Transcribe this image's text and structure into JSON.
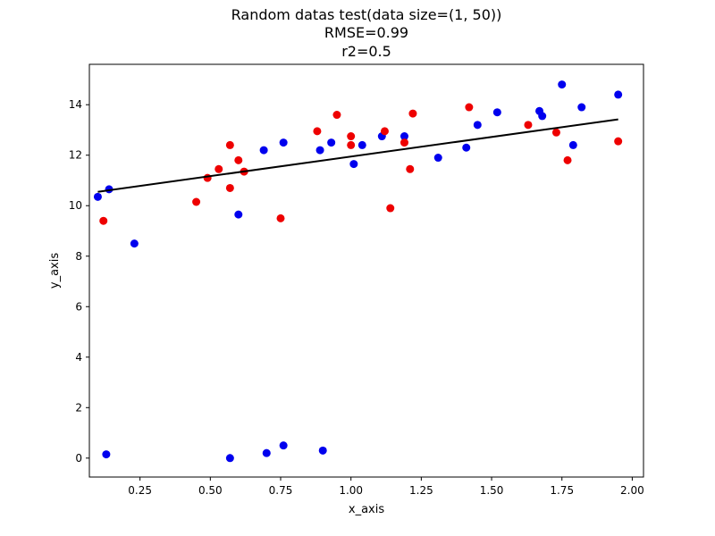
{
  "chart_data": {
    "type": "scatter",
    "title_lines": [
      "Random datas test(data size=(1, 50))",
      "RMSE=0.99",
      "r2=0.5"
    ],
    "xlabel": "x_axis",
    "ylabel": "y_axis",
    "xlim": [
      0.07,
      2.04
    ],
    "ylim": [
      -0.75,
      15.6
    ],
    "x_ticks": [
      0.25,
      0.5,
      0.75,
      1.0,
      1.25,
      1.5,
      1.75,
      2.0
    ],
    "x_tick_labels": [
      "0.25",
      "0.50",
      "0.75",
      "1.00",
      "1.25",
      "1.50",
      "1.75",
      "2.00"
    ],
    "y_ticks": [
      0,
      2,
      4,
      6,
      8,
      10,
      12,
      14
    ],
    "y_tick_labels": [
      "0",
      "2",
      "4",
      "6",
      "8",
      "10",
      "12",
      "14"
    ],
    "grid": false,
    "series": [
      {
        "color": "#0000ee",
        "points": [
          [
            0.1,
            10.35
          ],
          [
            0.14,
            10.65
          ],
          [
            0.23,
            8.5
          ],
          [
            0.13,
            0.15
          ],
          [
            0.6,
            9.65
          ],
          [
            0.69,
            12.2
          ],
          [
            0.76,
            12.5
          ],
          [
            0.89,
            12.2
          ],
          [
            0.93,
            12.5
          ],
          [
            1.01,
            11.65
          ],
          [
            1.04,
            12.4
          ],
          [
            1.11,
            12.75
          ],
          [
            1.19,
            12.75
          ],
          [
            1.31,
            11.9
          ],
          [
            1.41,
            12.3
          ],
          [
            1.45,
            13.2
          ],
          [
            1.52,
            13.7
          ],
          [
            1.67,
            13.75
          ],
          [
            1.68,
            13.55
          ],
          [
            1.75,
            14.8
          ],
          [
            1.79,
            12.4
          ],
          [
            1.82,
            13.9
          ],
          [
            1.95,
            14.4
          ],
          [
            0.57,
            0.0
          ],
          [
            0.7,
            0.2
          ],
          [
            0.76,
            0.5
          ],
          [
            0.9,
            0.3
          ]
        ]
      },
      {
        "color": "#ee0000",
        "points": [
          [
            0.12,
            9.4
          ],
          [
            0.45,
            10.15
          ],
          [
            0.49,
            11.1
          ],
          [
            0.53,
            11.45
          ],
          [
            0.57,
            12.4
          ],
          [
            0.57,
            10.7
          ],
          [
            0.6,
            11.8
          ],
          [
            0.62,
            11.35
          ],
          [
            0.75,
            9.5
          ],
          [
            0.88,
            12.95
          ],
          [
            0.95,
            13.6
          ],
          [
            1.0,
            12.75
          ],
          [
            1.0,
            12.4
          ],
          [
            1.12,
            12.95
          ],
          [
            1.14,
            9.9
          ],
          [
            1.19,
            12.5
          ],
          [
            1.21,
            11.45
          ],
          [
            1.22,
            13.65
          ],
          [
            1.42,
            13.9
          ],
          [
            1.63,
            13.2
          ],
          [
            1.73,
            12.9
          ],
          [
            1.77,
            11.8
          ],
          [
            1.95,
            12.55
          ]
        ]
      }
    ],
    "fit_line": {
      "color": "#000000",
      "x": [
        0.1,
        1.95
      ],
      "y": [
        10.55,
        13.42
      ]
    }
  }
}
